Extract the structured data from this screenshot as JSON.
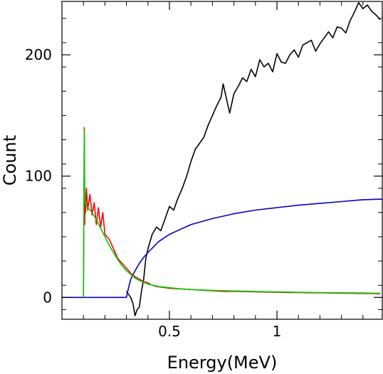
{
  "chart_data": {
    "type": "line",
    "title": "",
    "xlabel": "Energy(MeV)",
    "ylabel": "Count",
    "xlim": [
      0.0,
      1.49
    ],
    "ylim": [
      -18,
      244
    ],
    "xticks": [
      {
        "value": 0.5,
        "label": "0.5"
      },
      {
        "value": 1.0,
        "label": "1"
      }
    ],
    "yticks": [
      {
        "value": 0,
        "label": "0"
      },
      {
        "value": 100,
        "label": "100"
      },
      {
        "value": 200,
        "label": "200"
      }
    ],
    "grid": false,
    "legend": "none",
    "series": [
      {
        "color": "#000000",
        "x": [
          0.3,
          0.32,
          0.33,
          0.34,
          0.35,
          0.36,
          0.37,
          0.38,
          0.39,
          0.4,
          0.42,
          0.44,
          0.46,
          0.48,
          0.5,
          0.52,
          0.54,
          0.56,
          0.58,
          0.6,
          0.62,
          0.64,
          0.66,
          0.68,
          0.7,
          0.72,
          0.74,
          0.75,
          0.76,
          0.78,
          0.8,
          0.82,
          0.84,
          0.86,
          0.88,
          0.9,
          0.92,
          0.94,
          0.96,
          0.98,
          1.0,
          1.02,
          1.04,
          1.06,
          1.08,
          1.1,
          1.12,
          1.14,
          1.16,
          1.18,
          1.2,
          1.22,
          1.24,
          1.26,
          1.28,
          1.3,
          1.32,
          1.34,
          1.36,
          1.38,
          1.4,
          1.42,
          1.44,
          1.46,
          1.48
        ],
        "values": [
          5,
          0,
          -5,
          -15,
          -10,
          -8,
          5,
          15,
          32,
          40,
          52,
          58,
          55,
          65,
          75,
          72,
          82,
          90,
          100,
          112,
          122,
          127,
          132,
          142,
          150,
          158,
          165,
          176,
          168,
          152,
          168,
          174,
          181,
          178,
          188,
          182,
          196,
          190,
          193,
          186,
          201,
          194,
          193,
          200,
          204,
          198,
          208,
          210,
          212,
          203,
          209,
          214,
          219,
          214,
          223,
          222,
          218,
          228,
          235,
          243,
          238,
          241,
          236,
          233,
          229
        ]
      },
      {
        "color": "#0000cc",
        "x": [
          0.0,
          0.3,
          0.31,
          0.32,
          0.34,
          0.36,
          0.38,
          0.4,
          0.45,
          0.5,
          0.55,
          0.6,
          0.7,
          0.8,
          0.9,
          1.0,
          1.1,
          1.2,
          1.3,
          1.4,
          1.49
        ],
        "values": [
          0,
          0,
          8,
          15,
          22,
          28,
          33,
          37,
          46,
          52,
          56,
          60,
          65,
          69,
          72,
          74,
          76,
          77.5,
          79,
          80.5,
          81
        ]
      },
      {
        "color": "#ff0000",
        "x": [
          0.1,
          0.104,
          0.106,
          0.108,
          0.11,
          0.114,
          0.12,
          0.13,
          0.14,
          0.15,
          0.16,
          0.17,
          0.18,
          0.19,
          0.2,
          0.22,
          0.24,
          0.26,
          0.28,
          0.3,
          0.32,
          0.34,
          0.36,
          0.38,
          0.4,
          0.42,
          0.44,
          0.46,
          0.48,
          0.5,
          0.55,
          0.6,
          0.65,
          0.7,
          0.75,
          0.8,
          0.85,
          0.9,
          0.95,
          1.0,
          1.05,
          1.1,
          1.15,
          1.2,
          1.25,
          1.3,
          1.35,
          1.4,
          1.45,
          1.48
        ],
        "values": [
          0,
          140,
          60,
          85,
          70,
          90,
          72,
          85,
          68,
          78,
          60,
          74,
          58,
          70,
          52,
          48,
          40,
          32,
          28,
          24,
          20,
          17,
          15,
          13,
          12,
          10,
          9,
          8.5,
          8,
          7.5,
          7,
          6.5,
          6,
          5.5,
          5,
          5,
          4.8,
          4.6,
          4.4,
          4.2,
          4,
          4,
          3.8,
          3.8,
          3.6,
          3.5,
          3.4,
          3.3,
          3.2,
          3.0
        ]
      },
      {
        "color": "#00cc00",
        "x": [
          0.1,
          0.104,
          0.106,
          0.108,
          0.112,
          0.12,
          0.14,
          0.16,
          0.18,
          0.2,
          0.22,
          0.24,
          0.26,
          0.28,
          0.3,
          0.32,
          0.34,
          0.36,
          0.38,
          0.4,
          0.45,
          0.5,
          0.55,
          0.6,
          0.7,
          0.8,
          0.9,
          1.0,
          1.1,
          1.2,
          1.3,
          1.4,
          1.48
        ],
        "values": [
          0,
          138,
          90,
          80,
          76,
          74,
          70,
          64,
          57,
          50,
          43,
          37,
          31,
          26,
          22,
          19,
          16,
          14,
          12.5,
          11,
          9,
          8,
          7,
          6.5,
          5.8,
          5.3,
          4.9,
          4.5,
          4.2,
          4.0,
          3.8,
          3.6,
          3.4
        ]
      }
    ]
  }
}
